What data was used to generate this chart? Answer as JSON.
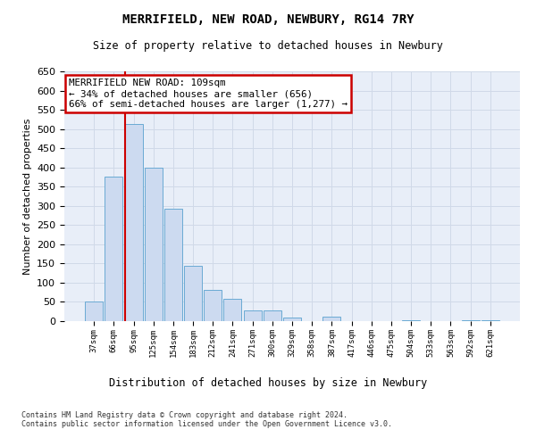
{
  "title": "MERRIFIELD, NEW ROAD, NEWBURY, RG14 7RY",
  "subtitle": "Size of property relative to detached houses in Newbury",
  "xlabel": "Distribution of detached houses by size in Newbury",
  "ylabel": "Number of detached properties",
  "categories": [
    "37sqm",
    "66sqm",
    "95sqm",
    "125sqm",
    "154sqm",
    "183sqm",
    "212sqm",
    "241sqm",
    "271sqm",
    "300sqm",
    "329sqm",
    "358sqm",
    "387sqm",
    "417sqm",
    "446sqm",
    "475sqm",
    "504sqm",
    "533sqm",
    "563sqm",
    "592sqm",
    "621sqm"
  ],
  "values": [
    50,
    375,
    513,
    400,
    293,
    143,
    82,
    57,
    29,
    29,
    10,
    0,
    12,
    0,
    0,
    0,
    3,
    0,
    0,
    3,
    3
  ],
  "bar_color": "#ccdaf0",
  "bar_edge_color": "#6aaad4",
  "grid_color": "#d0d9e8",
  "background_color": "#e8eef8",
  "vline_x_index": 2,
  "vline_color": "#cc0000",
  "annotation_text": "MERRIFIELD NEW ROAD: 109sqm\n← 34% of detached houses are smaller (656)\n66% of semi-detached houses are larger (1,277) →",
  "annotation_box_facecolor": "#ffffff",
  "annotation_box_edgecolor": "#cc0000",
  "ylim": [
    0,
    650
  ],
  "yticks": [
    0,
    50,
    100,
    150,
    200,
    250,
    300,
    350,
    400,
    450,
    500,
    550,
    600,
    650
  ],
  "footer_line1": "Contains HM Land Registry data © Crown copyright and database right 2024.",
  "footer_line2": "Contains public sector information licensed under the Open Government Licence v3.0."
}
